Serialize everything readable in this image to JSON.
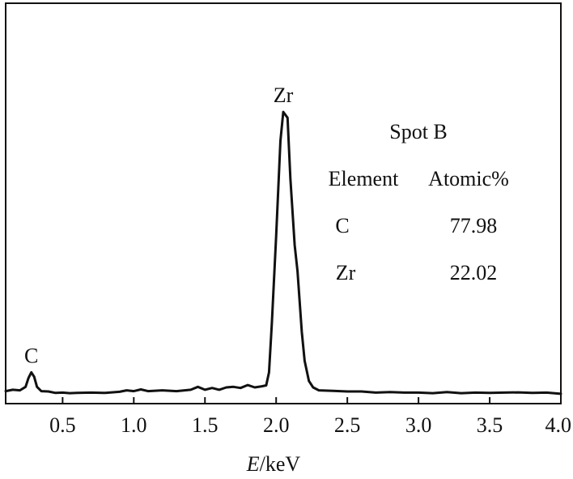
{
  "chart_data": {
    "type": "line",
    "title": "",
    "xlabel_var": "E",
    "xlabel_unit": "/keV",
    "ylabel": "",
    "xlim": [
      0.1,
      4.0
    ],
    "ylim": [
      0,
      100
    ],
    "x_ticks": [
      {
        "value": 0.5,
        "label": "0.5"
      },
      {
        "value": 1.0,
        "label": "1.0"
      },
      {
        "value": 1.5,
        "label": "1.5"
      },
      {
        "value": 2.0,
        "label": "2.0"
      },
      {
        "value": 2.5,
        "label": "2.5"
      },
      {
        "value": 3.0,
        "label": "3.0"
      },
      {
        "value": 3.5,
        "label": "3.5"
      },
      {
        "value": 4.0,
        "label": "4.0"
      }
    ],
    "grid": false,
    "series": [
      {
        "points": [
          [
            0.1,
            1.5
          ],
          [
            0.15,
            2.0
          ],
          [
            0.2,
            1.8
          ],
          [
            0.24,
            3.0
          ],
          [
            0.26,
            6.0
          ],
          [
            0.28,
            8.0
          ],
          [
            0.3,
            6.5
          ],
          [
            0.32,
            3.0
          ],
          [
            0.35,
            1.5
          ],
          [
            0.4,
            1.4
          ],
          [
            0.45,
            0.9
          ],
          [
            0.5,
            1.0
          ],
          [
            0.55,
            0.8
          ],
          [
            0.6,
            0.9
          ],
          [
            0.7,
            1.0
          ],
          [
            0.8,
            0.9
          ],
          [
            0.9,
            1.3
          ],
          [
            0.95,
            1.8
          ],
          [
            1.0,
            1.5
          ],
          [
            1.05,
            2.1
          ],
          [
            1.1,
            1.5
          ],
          [
            1.2,
            1.8
          ],
          [
            1.3,
            1.5
          ],
          [
            1.4,
            2.0
          ],
          [
            1.45,
            3.0
          ],
          [
            1.5,
            2.0
          ],
          [
            1.55,
            2.6
          ],
          [
            1.6,
            2.0
          ],
          [
            1.65,
            2.8
          ],
          [
            1.7,
            3.0
          ],
          [
            1.75,
            2.6
          ],
          [
            1.8,
            3.6
          ],
          [
            1.85,
            2.8
          ],
          [
            1.9,
            3.2
          ],
          [
            1.93,
            3.5
          ],
          [
            1.95,
            8.0
          ],
          [
            1.97,
            25.0
          ],
          [
            2.0,
            55.0
          ],
          [
            2.03,
            88.0
          ],
          [
            2.05,
            98.0
          ],
          [
            2.08,
            96.0
          ],
          [
            2.1,
            75.0
          ],
          [
            2.13,
            52.0
          ],
          [
            2.15,
            43.0
          ],
          [
            2.18,
            22.0
          ],
          [
            2.2,
            12.0
          ],
          [
            2.23,
            5.0
          ],
          [
            2.26,
            2.8
          ],
          [
            2.3,
            1.8
          ],
          [
            2.4,
            1.6
          ],
          [
            2.5,
            1.4
          ],
          [
            2.6,
            1.4
          ],
          [
            2.7,
            1.0
          ],
          [
            2.8,
            1.2
          ],
          [
            2.9,
            1.0
          ],
          [
            3.0,
            1.0
          ],
          [
            3.1,
            0.8
          ],
          [
            3.2,
            1.2
          ],
          [
            3.3,
            0.8
          ],
          [
            3.4,
            1.0
          ],
          [
            3.5,
            0.9
          ],
          [
            3.6,
            1.0
          ],
          [
            3.7,
            1.1
          ],
          [
            3.8,
            0.9
          ],
          [
            3.9,
            1.0
          ],
          [
            4.0,
            0.6
          ]
        ]
      }
    ],
    "annotations": [
      {
        "text": "C",
        "x": 0.28,
        "y": 8.0
      },
      {
        "text": "Zr",
        "x": 2.05,
        "y": 98.0
      }
    ],
    "table": {
      "title": "Spot B",
      "headers": [
        "Element",
        "Atomic%"
      ],
      "rows": [
        [
          "C",
          "77.98"
        ],
        [
          "Zr",
          "22.02"
        ]
      ]
    },
    "colors": {
      "line": "#111111",
      "frame": "#111111",
      "background": "#ffffff"
    }
  }
}
